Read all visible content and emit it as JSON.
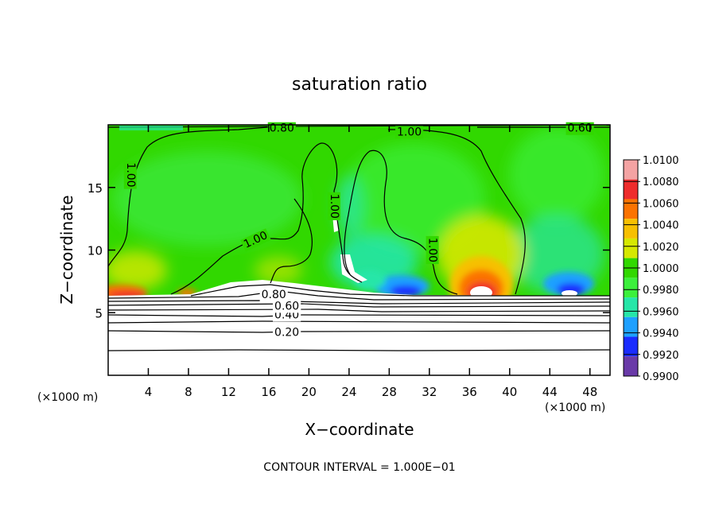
{
  "chart_data": {
    "type": "heatmap",
    "title": "saturation ratio",
    "xlabel": "X−coordinate",
    "ylabel": "Z−coordinate",
    "x_unit_left": "(×1000 m)",
    "x_unit_right": "(×1000 m)",
    "xlim": [
      0,
      50
    ],
    "ylim": [
      0,
      20
    ],
    "x_ticks": [
      4,
      8,
      12,
      16,
      20,
      24,
      28,
      32,
      36,
      40,
      44,
      48
    ],
    "y_ticks": [
      5,
      10,
      15
    ],
    "footer": "CONTOUR INTERVAL = 1.000E−01",
    "colorbar": {
      "labels": [
        "1.0100",
        "1.0080",
        "1.0060",
        "1.0040",
        "1.0020",
        "1.0000",
        "0.9980",
        "0.9960",
        "0.9940",
        "0.9920",
        "0.9900"
      ],
      "colors": [
        "#f4a3a3",
        "#ee2c2c",
        "#fb7300",
        "#f7c000",
        "#d6e800",
        "#31d800",
        "#3cf03c",
        "#26e6a8",
        "#1ea0ff",
        "#1a2cff",
        "#6a3aa8"
      ]
    },
    "contour_labels": [
      {
        "text": "0.20",
        "x": 17.8,
        "z": 3.4
      },
      {
        "text": "0.40",
        "x": 17.8,
        "z": 4.8
      },
      {
        "text": "0.60",
        "x": 17.8,
        "z": 5.5
      },
      {
        "text": "0.80",
        "x": 16.5,
        "z": 6.4
      },
      {
        "text": "1.00",
        "x": 2.2,
        "z": 16.0
      },
      {
        "text": "1.00",
        "x": 14.7,
        "z": 10.8
      },
      {
        "text": "1.00",
        "x": 22.5,
        "z": 13.5
      },
      {
        "text": "1.00",
        "x": 32.3,
        "z": 10.0
      },
      {
        "text": "1.00",
        "x": 30.0,
        "z": 19.4
      },
      {
        "text": "0.80",
        "x": 17.3,
        "z": 19.7
      },
      {
        "text": "0.60",
        "x": 47.0,
        "z": 19.7
      }
    ]
  }
}
